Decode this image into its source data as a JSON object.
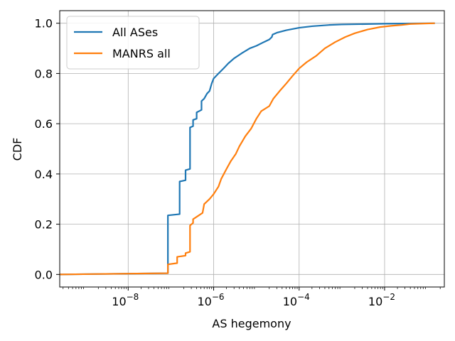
{
  "chart_data": {
    "type": "line",
    "xlabel": "AS hegemony",
    "ylabel": "CDF",
    "xscale": "log",
    "xlim": [
      2.5e-10,
      0.25
    ],
    "ylim": [
      -0.05,
      1.05
    ],
    "grid": true,
    "legend_position": "top-left",
    "x_ticks": [
      {
        "value": 1e-08,
        "base": "10",
        "exp": "−8"
      },
      {
        "value": 1e-06,
        "base": "10",
        "exp": "−6"
      },
      {
        "value": 0.0001,
        "base": "10",
        "exp": "−4"
      },
      {
        "value": 0.01,
        "base": "10",
        "exp": "−2"
      }
    ],
    "y_ticks": [
      {
        "value": 0.0,
        "label": "0.0"
      },
      {
        "value": 0.2,
        "label": "0.2"
      },
      {
        "value": 0.4,
        "label": "0.4"
      },
      {
        "value": 0.6,
        "label": "0.6"
      },
      {
        "value": 0.8,
        "label": "0.8"
      },
      {
        "value": 1.0,
        "label": "1.0"
      }
    ],
    "series": [
      {
        "name": "All ASes",
        "color": "#1f77b4",
        "points": [
          [
            2.5e-10,
            0.0
          ],
          [
            8.5e-08,
            0.005
          ],
          [
            8.5e-08,
            0.235
          ],
          [
            1.6e-07,
            0.24
          ],
          [
            1.6e-07,
            0.37
          ],
          [
            2.2e-07,
            0.375
          ],
          [
            2.2e-07,
            0.415
          ],
          [
            2.8e-07,
            0.42
          ],
          [
            2.8e-07,
            0.585
          ],
          [
            3.3e-07,
            0.59
          ],
          [
            3.3e-07,
            0.615
          ],
          [
            4e-07,
            0.62
          ],
          [
            4e-07,
            0.645
          ],
          [
            5.2e-07,
            0.655
          ],
          [
            5.2e-07,
            0.69
          ],
          [
            6e-07,
            0.7
          ],
          [
            7e-07,
            0.72
          ],
          [
            8e-07,
            0.73
          ],
          [
            9e-07,
            0.76
          ],
          [
            1e-06,
            0.78
          ],
          [
            1.3e-06,
            0.8
          ],
          [
            1.7e-06,
            0.82
          ],
          [
            2.2e-06,
            0.84
          ],
          [
            3e-06,
            0.86
          ],
          [
            4.5e-06,
            0.88
          ],
          [
            7e-06,
            0.9
          ],
          [
            1e-05,
            0.91
          ],
          [
            1.5e-05,
            0.925
          ],
          [
            2e-05,
            0.935
          ],
          [
            2.3e-05,
            0.945
          ],
          [
            2.4e-05,
            0.955
          ],
          [
            3e-05,
            0.962
          ],
          [
            5e-05,
            0.972
          ],
          [
            0.0001,
            0.982
          ],
          [
            0.0002,
            0.988
          ],
          [
            0.0005,
            0.993
          ],
          [
            0.001,
            0.995
          ],
          [
            0.01,
            0.998
          ],
          [
            0.15,
            1.0
          ]
        ]
      },
      {
        "name": "MANRS all",
        "color": "#ff7f0e",
        "points": [
          [
            2.5e-10,
            0.0
          ],
          [
            8.5e-08,
            0.005
          ],
          [
            8.5e-08,
            0.04
          ],
          [
            1.4e-07,
            0.045
          ],
          [
            1.4e-07,
            0.07
          ],
          [
            2.2e-07,
            0.075
          ],
          [
            2.2e-07,
            0.085
          ],
          [
            2.8e-07,
            0.09
          ],
          [
            2.8e-07,
            0.195
          ],
          [
            3.3e-07,
            0.205
          ],
          [
            3.3e-07,
            0.22
          ],
          [
            4.5e-07,
            0.235
          ],
          [
            5.5e-07,
            0.245
          ],
          [
            6e-07,
            0.28
          ],
          [
            8e-07,
            0.3
          ],
          [
            1e-06,
            0.32
          ],
          [
            1.3e-06,
            0.35
          ],
          [
            1.5e-06,
            0.38
          ],
          [
            2e-06,
            0.42
          ],
          [
            2.5e-06,
            0.45
          ],
          [
            3.3e-06,
            0.48
          ],
          [
            4e-06,
            0.51
          ],
          [
            5.5e-06,
            0.55
          ],
          [
            7.5e-06,
            0.58
          ],
          [
            1e-05,
            0.62
          ],
          [
            1.3e-05,
            0.65
          ],
          [
            2e-05,
            0.67
          ],
          [
            2.5e-05,
            0.7
          ],
          [
            3.5e-05,
            0.73
          ],
          [
            5e-05,
            0.76
          ],
          [
            7e-05,
            0.79
          ],
          [
            0.0001,
            0.82
          ],
          [
            0.00015,
            0.845
          ],
          [
            0.00025,
            0.87
          ],
          [
            0.0004,
            0.9
          ],
          [
            0.0007,
            0.925
          ],
          [
            0.0012,
            0.945
          ],
          [
            0.002,
            0.96
          ],
          [
            0.004,
            0.975
          ],
          [
            0.008,
            0.985
          ],
          [
            0.015,
            0.99
          ],
          [
            0.025,
            0.993
          ],
          [
            0.04,
            0.997
          ],
          [
            0.15,
            1.0
          ]
        ]
      }
    ]
  }
}
